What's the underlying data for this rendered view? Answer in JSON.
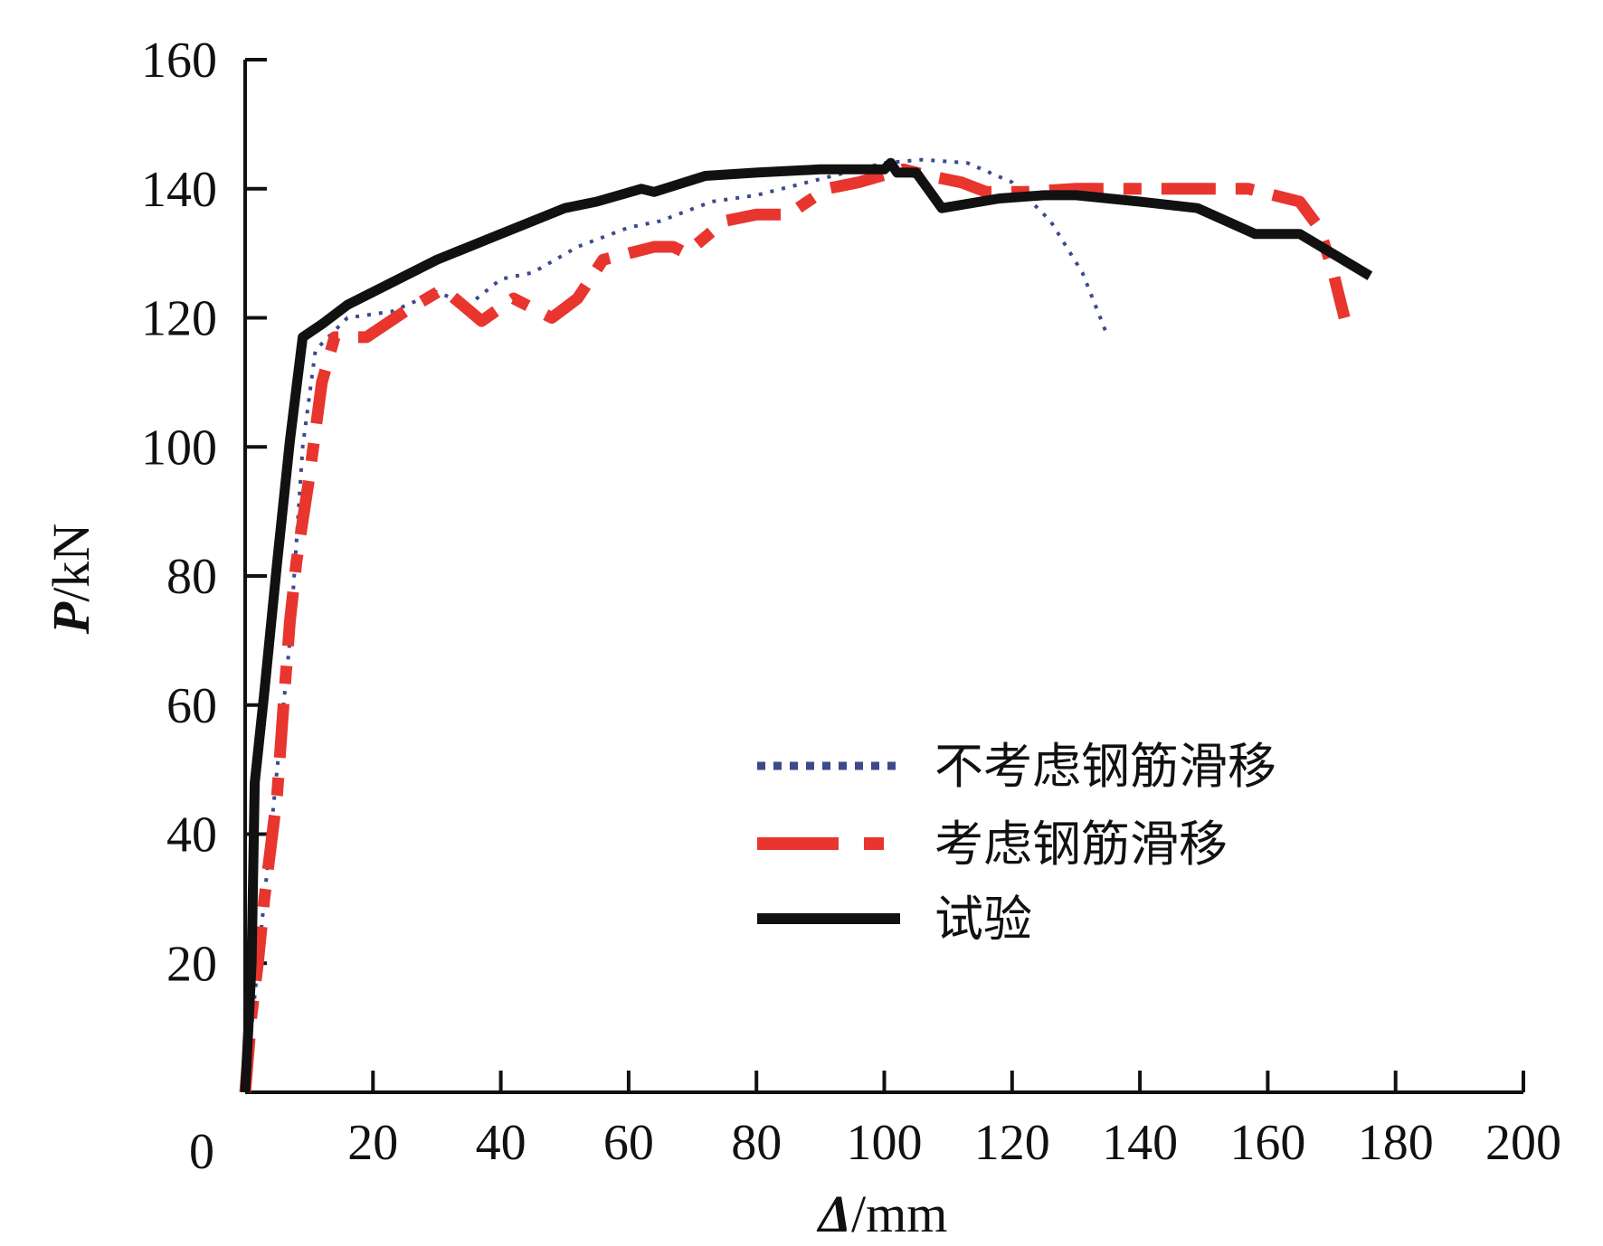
{
  "chart_data": {
    "type": "line",
    "title": "",
    "xlabel": "Δ/mm",
    "ylabel": "P/kN",
    "xlim": [
      0,
      200
    ],
    "ylim": [
      0,
      160
    ],
    "xticks": [
      0,
      20,
      40,
      60,
      80,
      100,
      120,
      140,
      160,
      180,
      200
    ],
    "yticks": [
      20,
      40,
      60,
      80,
      100,
      120,
      140,
      160
    ],
    "grid": false,
    "legend_position": "lower-right",
    "series": [
      {
        "name": "不考虑钢筋滑移",
        "color": "#3c4a8c",
        "style": "dotted",
        "points": [
          [
            0,
            0
          ],
          [
            3,
            30
          ],
          [
            5,
            50
          ],
          [
            7,
            70
          ],
          [
            9,
            100
          ],
          [
            11,
            115
          ],
          [
            16,
            120
          ],
          [
            23,
            121
          ],
          [
            30,
            124
          ],
          [
            35,
            122
          ],
          [
            40,
            126
          ],
          [
            45,
            127
          ],
          [
            52,
            131
          ],
          [
            60,
            134
          ],
          [
            65,
            135
          ],
          [
            73,
            138
          ],
          [
            80,
            139
          ],
          [
            88,
            141
          ],
          [
            96,
            143
          ],
          [
            100,
            144
          ],
          [
            106,
            144.5
          ],
          [
            113,
            144
          ],
          [
            120,
            141
          ],
          [
            126,
            135
          ],
          [
            131,
            127
          ],
          [
            135,
            117
          ]
        ]
      },
      {
        "name": "考虑钢筋滑移",
        "color": "#e8352e",
        "style": "dash-dot",
        "points": [
          [
            0,
            0
          ],
          [
            1,
            12
          ],
          [
            2,
            20
          ],
          [
            3,
            30
          ],
          [
            4,
            38
          ],
          [
            5,
            46
          ],
          [
            6,
            60
          ],
          [
            7,
            73
          ],
          [
            8,
            82
          ],
          [
            10,
            95
          ],
          [
            12,
            110
          ],
          [
            14,
            117
          ],
          [
            19,
            117
          ],
          [
            25,
            121
          ],
          [
            31,
            124.5
          ],
          [
            37,
            119.5
          ],
          [
            42,
            123
          ],
          [
            46,
            121
          ],
          [
            48,
            120
          ],
          [
            52,
            123
          ],
          [
            56,
            129
          ],
          [
            60,
            130
          ],
          [
            64,
            131
          ],
          [
            67,
            131
          ],
          [
            69,
            130
          ],
          [
            75,
            135
          ],
          [
            80,
            136
          ],
          [
            85,
            136
          ],
          [
            91,
            140
          ],
          [
            96,
            141
          ],
          [
            103,
            143
          ],
          [
            107,
            142
          ],
          [
            112,
            141
          ],
          [
            116,
            139.5
          ],
          [
            122,
            139.5
          ],
          [
            130,
            140
          ],
          [
            140,
            140
          ],
          [
            150,
            140
          ],
          [
            157,
            140
          ],
          [
            165,
            138
          ],
          [
            168,
            134
          ],
          [
            170,
            128
          ],
          [
            172,
            120
          ]
        ]
      },
      {
        "name": "试验",
        "color": "#111111",
        "style": "solid",
        "points": [
          [
            0,
            0
          ],
          [
            1,
            20
          ],
          [
            1.5,
            48
          ],
          [
            3,
            62
          ],
          [
            5,
            82
          ],
          [
            7,
            101
          ],
          [
            9,
            117
          ],
          [
            12,
            119
          ],
          [
            16,
            122
          ],
          [
            22,
            125
          ],
          [
            30,
            129
          ],
          [
            40,
            133
          ],
          [
            50,
            137
          ],
          [
            55,
            138
          ],
          [
            62,
            140
          ],
          [
            64,
            139.5
          ],
          [
            72,
            142
          ],
          [
            80,
            142.5
          ],
          [
            90,
            143
          ],
          [
            100,
            143
          ],
          [
            101,
            144
          ],
          [
            102,
            142.5
          ],
          [
            105,
            142.5
          ],
          [
            109,
            137
          ],
          [
            118,
            138.5
          ],
          [
            125,
            139
          ],
          [
            130,
            139
          ],
          [
            140,
            138
          ],
          [
            149,
            137
          ],
          [
            158,
            133
          ],
          [
            165,
            133
          ],
          [
            176,
            126.5
          ]
        ]
      }
    ]
  }
}
